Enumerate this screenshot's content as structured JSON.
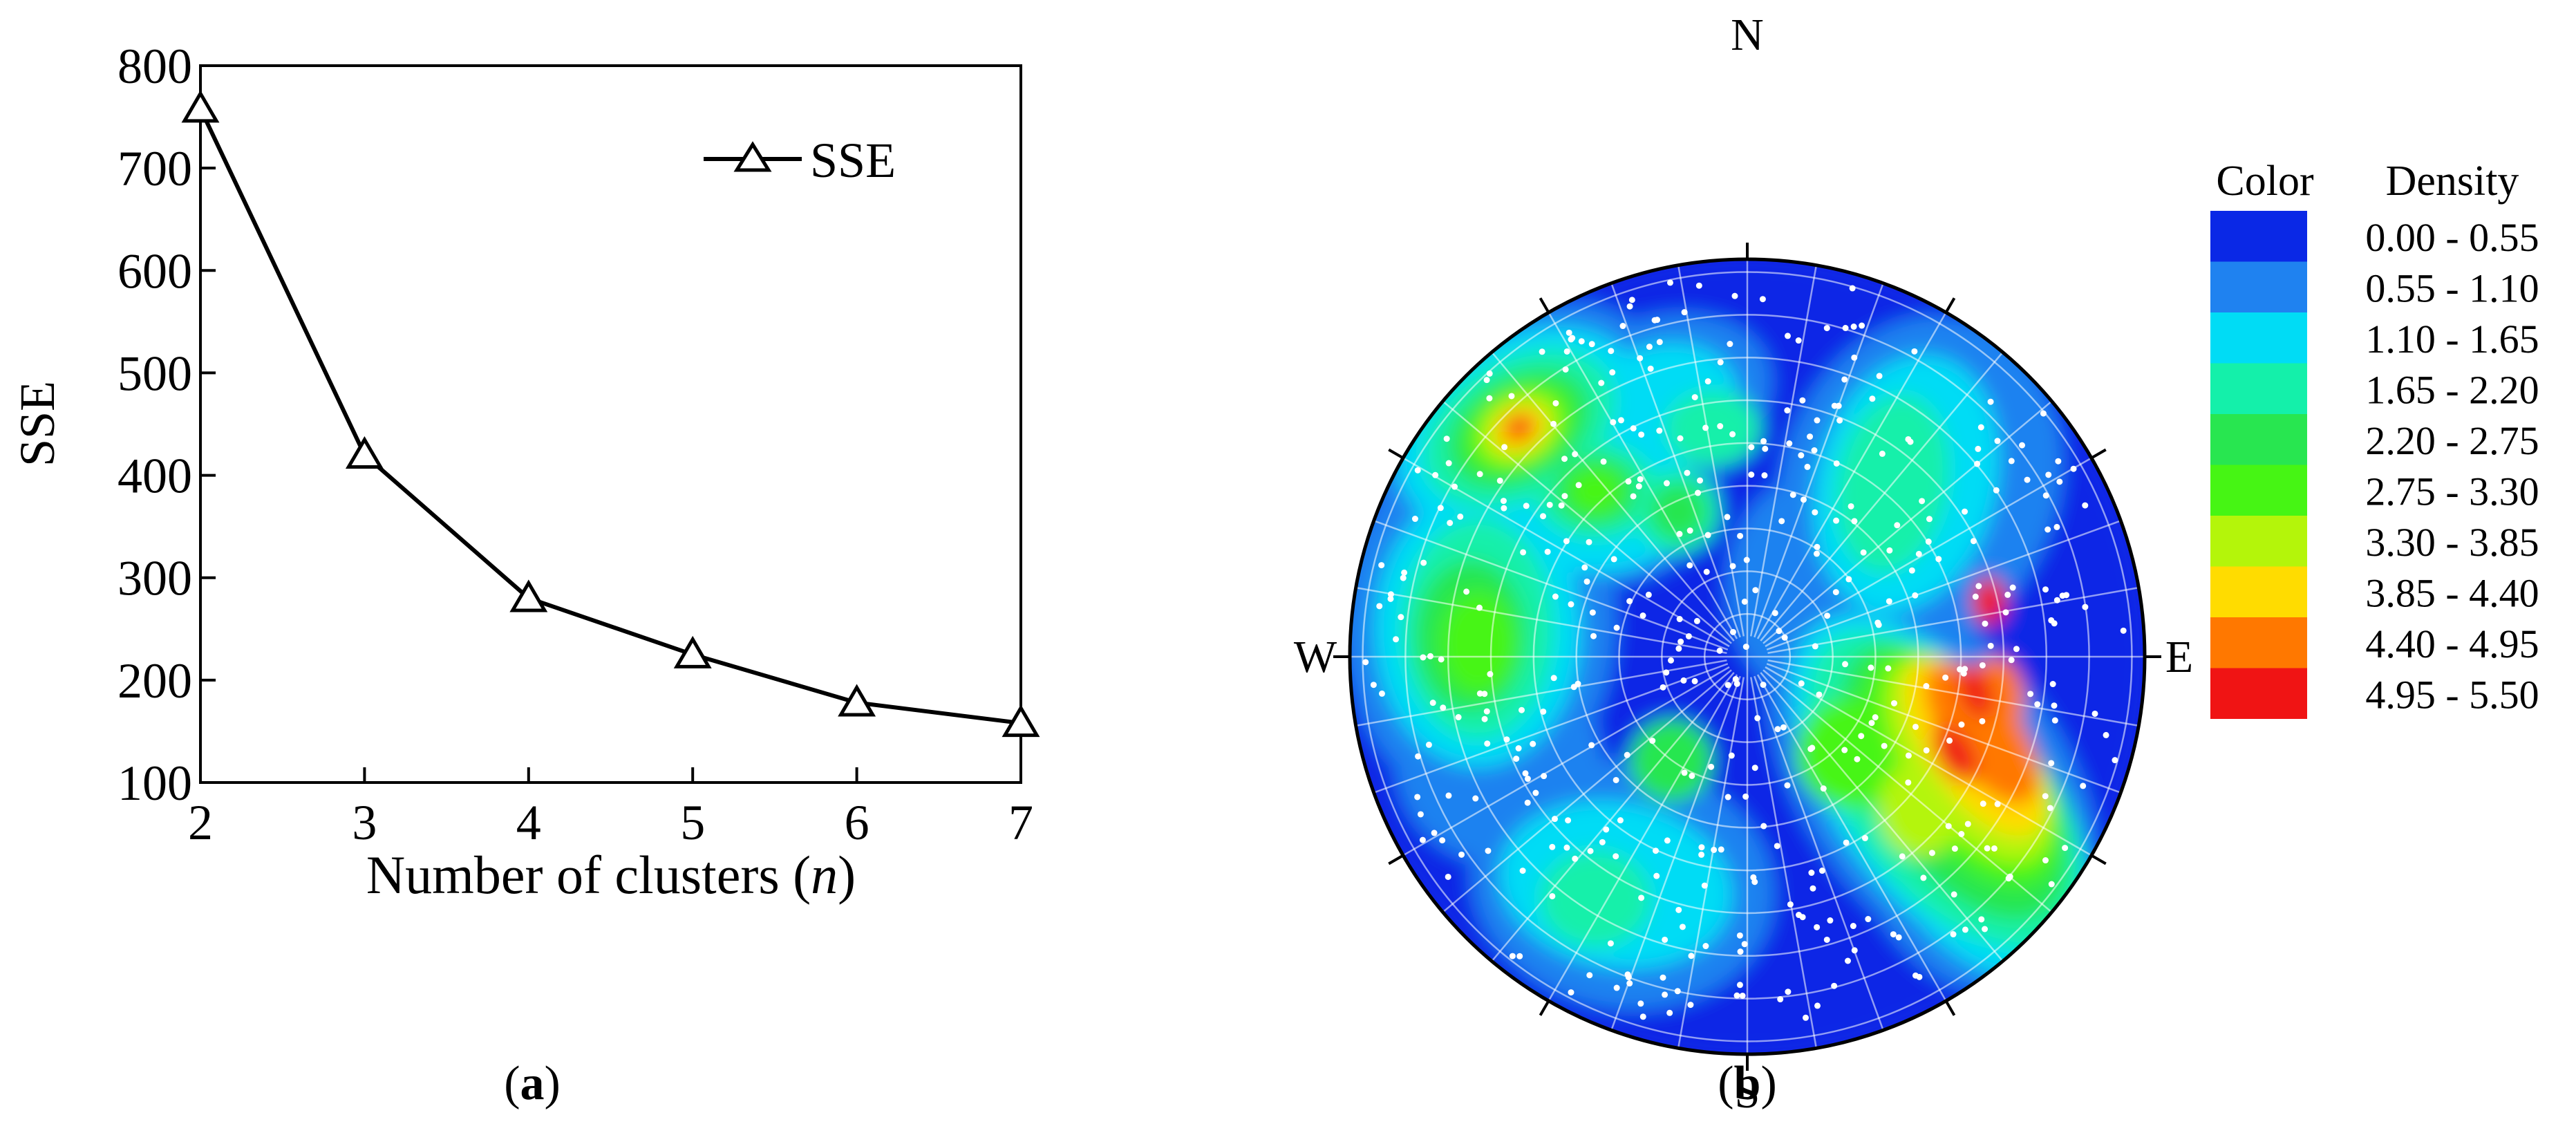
{
  "chart_data": [
    {
      "type": "line",
      "panel_label": "a",
      "title": "",
      "xlabel": "Number of clusters (",
      "xlabel_var": "n",
      "xlabel_close": ")",
      "ylabel": "SSE",
      "xlim": [
        2,
        7
      ],
      "ylim": [
        100,
        800
      ],
      "xticks": [
        "2",
        "3",
        "4",
        "5",
        "6",
        "7"
      ],
      "yticks": [
        "100",
        "200",
        "300",
        "400",
        "500",
        "600",
        "700",
        "800"
      ],
      "legend": {
        "placement": "top-right"
      },
      "series": [
        {
          "name": "SSE",
          "marker": "triangle-open",
          "color": "#000000",
          "x": [
            2,
            3,
            4,
            5,
            6,
            7
          ],
          "y": [
            758,
            420,
            280,
            225,
            178,
            158
          ]
        }
      ]
    },
    {
      "type": "heatmap",
      "subtype": "stereonet-density",
      "panel_label": "b",
      "compass": {
        "north": "N",
        "east": "E",
        "south": "S",
        "west": "W"
      },
      "legend": {
        "placement": "right",
        "color_header": "Color",
        "value_header": "Density",
        "bins": [
          {
            "range": "0.00 - 0.55",
            "color": "#0a28e6"
          },
          {
            "range": "0.55 - 1.10",
            "color": "#1f82f0"
          },
          {
            "range": "1.10 - 1.65",
            "color": "#00dcf5"
          },
          {
            "range": "1.65 - 2.20",
            "color": "#14f0aa"
          },
          {
            "range": "2.20 - 2.75",
            "color": "#28e650"
          },
          {
            "range": "2.75 - 3.30",
            "color": "#46f514"
          },
          {
            "range": "3.30 - 3.85",
            "color": "#b4f50a"
          },
          {
            "range": "3.85 - 4.40",
            "color": "#ffdc00"
          },
          {
            "range": "4.40 - 4.95",
            "color": "#ff7800"
          },
          {
            "range": "4.95 - 5.50",
            "color": "#f01414"
          }
        ]
      }
    }
  ]
}
